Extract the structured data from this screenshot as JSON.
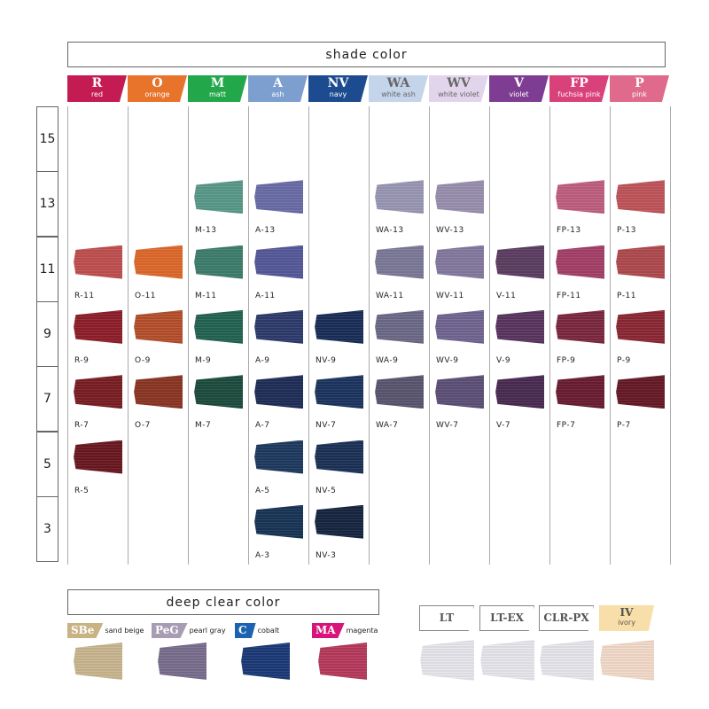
{
  "shade_title": "shade color",
  "levels": [
    "15",
    "13",
    "11",
    "9",
    "7",
    "5",
    "3"
  ],
  "columns": [
    {
      "code": "R",
      "name": "red",
      "color": "#c41c52",
      "cells": [
        {
          "level": "11",
          "label": "R-11",
          "color": "#c0504f"
        },
        {
          "level": "9",
          "label": "R-9",
          "color": "#8e1f2a"
        },
        {
          "level": "7",
          "label": "R-7",
          "color": "#7a1e24"
        },
        {
          "level": "5",
          "label": "R-5",
          "color": "#6a1820"
        }
      ]
    },
    {
      "code": "O",
      "name": "orange",
      "color": "#e8732a",
      "cells": [
        {
          "level": "11",
          "label": "O-11",
          "color": "#e0692a"
        },
        {
          "level": "9",
          "label": "O-9",
          "color": "#b6502c"
        },
        {
          "level": "7",
          "label": "O-7",
          "color": "#8c3524"
        }
      ]
    },
    {
      "code": "M",
      "name": "matt",
      "color": "#22a84a",
      "cells": [
        {
          "level": "13",
          "label": "M-13",
          "color": "#5a9a8a"
        },
        {
          "level": "11",
          "label": "M-11",
          "color": "#3f7e6c"
        },
        {
          "level": "9",
          "label": "M-9",
          "color": "#236453"
        },
        {
          "level": "7",
          "label": "M-7",
          "color": "#1d4c3f"
        }
      ]
    },
    {
      "code": "A",
      "name": "ash",
      "color": "#7d9fd0",
      "cells": [
        {
          "level": "13",
          "label": "A-13",
          "color": "#6a6ca8"
        },
        {
          "level": "11",
          "label": "A-11",
          "color": "#55599a"
        },
        {
          "level": "9",
          "label": "A-9",
          "color": "#2e3c6c"
        },
        {
          "level": "7",
          "label": "A-7",
          "color": "#1f2e58"
        },
        {
          "level": "5",
          "label": "A-5",
          "color": "#1e3a60"
        },
        {
          "level": "3",
          "label": "A-3",
          "color": "#183456"
        }
      ]
    },
    {
      "code": "NV",
      "name": "navy",
      "color": "#1c4b90",
      "cells": [
        {
          "level": "9",
          "label": "NV-9",
          "color": "#1a2e58"
        },
        {
          "level": "7",
          "label": "NV-7",
          "color": "#1c3560"
        },
        {
          "level": "5",
          "label": "NV-5",
          "color": "#1b3257"
        },
        {
          "level": "3",
          "label": "NV-3",
          "color": "#162640"
        }
      ]
    },
    {
      "code": "WA",
      "name": "white ash",
      "color": "#c4d4ea",
      "cells": [
        {
          "level": "13",
          "label": "WA-13",
          "color": "#9a98b4"
        },
        {
          "level": "11",
          "label": "WA-11",
          "color": "#7c7a98"
        },
        {
          "level": "9",
          "label": "WA-9",
          "color": "#6c6a88"
        },
        {
          "level": "7",
          "label": "WA-7",
          "color": "#5a5670"
        }
      ]
    },
    {
      "code": "WV",
      "name": "white violet",
      "color": "#e2d4ea",
      "cells": [
        {
          "level": "13",
          "label": "WV-13",
          "color": "#9a90b0"
        },
        {
          "level": "11",
          "label": "WV-11",
          "color": "#857aa0"
        },
        {
          "level": "9",
          "label": "WV-9",
          "color": "#716692"
        },
        {
          "level": "7",
          "label": "WV-7",
          "color": "#5d5078"
        }
      ]
    },
    {
      "code": "V",
      "name": "violet",
      "color": "#7e3d92",
      "cells": [
        {
          "level": "11",
          "label": "V-11",
          "color": "#5c3e62"
        },
        {
          "level": "9",
          "label": "V-9",
          "color": "#5a3560"
        },
        {
          "level": "7",
          "label": "V-7",
          "color": "#4a2a52"
        }
      ]
    },
    {
      "code": "FP",
      "name": "fuchsia pink",
      "color": "#d9417a",
      "cells": [
        {
          "level": "13",
          "label": "FP-13",
          "color": "#c06080"
        },
        {
          "level": "11",
          "label": "FP-11",
          "color": "#a64068"
        },
        {
          "level": "9",
          "label": "FP-9",
          "color": "#7c2840"
        },
        {
          "level": "7",
          "label": "FP-7",
          "color": "#6a1c32"
        }
      ]
    },
    {
      "code": "P",
      "name": "pink",
      "color": "#e06a8c",
      "cells": [
        {
          "level": "13",
          "label": "P-13",
          "color": "#c0555a"
        },
        {
          "level": "11",
          "label": "P-11",
          "color": "#b04a4e"
        },
        {
          "level": "9",
          "label": "P-9",
          "color": "#8c2834"
        },
        {
          "level": "7",
          "label": "P-7",
          "color": "#661a26"
        }
      ]
    }
  ],
  "deep_title": "deep clear color",
  "deep": [
    {
      "code": "SBe",
      "name": "sand beige",
      "tab_color": "#c9b284",
      "color": "#cbb790"
    },
    {
      "code": "PeG",
      "name": "pearl gray",
      "tab_color": "#a89cb4",
      "color": "#7a6e8e"
    },
    {
      "code": "C",
      "name": "cobalt",
      "tab_color": "#1b63b0",
      "color": "#1c3a78"
    },
    {
      "code": "MA",
      "name": "magenta",
      "tab_color": "#d8137a",
      "color": "#b83a5c"
    }
  ],
  "light": [
    {
      "code": "LT",
      "name": "",
      "tab_color": "#ffffff",
      "color": "#e8e8ee"
    },
    {
      "code": "LT-EX",
      "name": "",
      "tab_color": "#ffffff",
      "color": "#e8e8ee"
    },
    {
      "code": "CLR-PX",
      "name": "",
      "tab_color": "#ffffff",
      "color": "#e8e8ee"
    },
    {
      "code": "IV",
      "name": "ivory",
      "tab_color": "#f8dea8",
      "color": "#f4dcca"
    }
  ]
}
